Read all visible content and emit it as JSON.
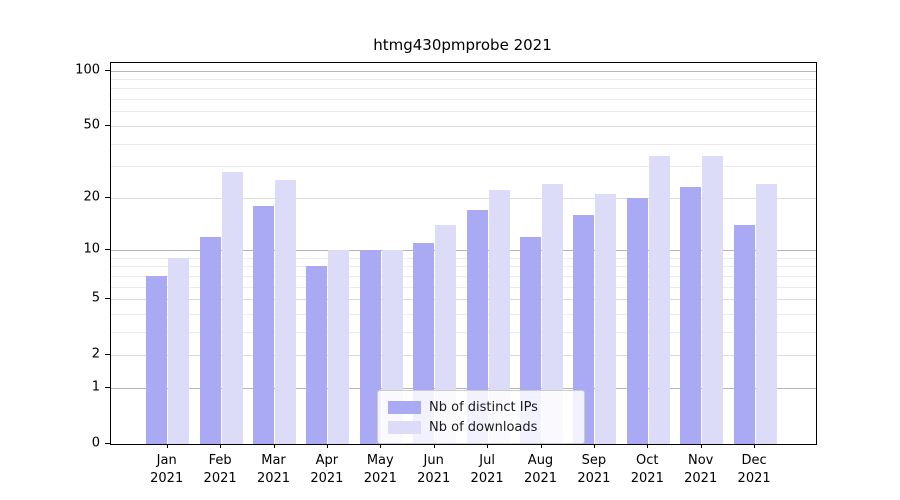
{
  "page": {
    "title": "htmg430pmprobe 2021"
  },
  "chart_data": {
    "type": "bar",
    "title": "htmg430pmprobe 2021",
    "categories": [
      "Jan 2021",
      "Feb 2021",
      "Mar 2021",
      "Apr 2021",
      "May 2021",
      "Jun 2021",
      "Jul 2021",
      "Aug 2021",
      "Sep 2021",
      "Oct 2021",
      "Nov 2021",
      "Dec 2021"
    ],
    "series": [
      {
        "name": "Nb of distinct IPs",
        "color": "#a9a9f4",
        "values": [
          7,
          12,
          18,
          8,
          10,
          11,
          17,
          12,
          16,
          20,
          23,
          14
        ]
      },
      {
        "name": "Nb of downloads",
        "color": "#dcdcf8",
        "values": [
          9,
          28,
          25,
          10,
          10,
          14,
          22,
          24,
          21,
          34,
          34,
          24
        ]
      }
    ],
    "yscale": "log1p",
    "ylim": [
      0,
      110
    ],
    "xlabel": "",
    "ylabel": "",
    "y_ticks": [
      0,
      1,
      2,
      5,
      10,
      20,
      50,
      100
    ],
    "y_major_gridlines": [
      1,
      10,
      100
    ],
    "y_mid_gridlines": [
      2,
      5,
      20,
      50
    ],
    "y_minor_gridlines": [
      3,
      4,
      6,
      7,
      8,
      9,
      30,
      40,
      60,
      70,
      80,
      90
    ],
    "grid": true,
    "legend": {
      "position": "lower center",
      "entries": [
        "Nb of distinct IPs",
        "Nb of downloads"
      ]
    }
  },
  "colors": {
    "axis": "#000000",
    "text": "#111111",
    "grid_major": "#b6b6b6",
    "grid_mid": "#dcdcdc",
    "grid_minor": "#ebebeb",
    "legend_border": "#cccccc"
  }
}
